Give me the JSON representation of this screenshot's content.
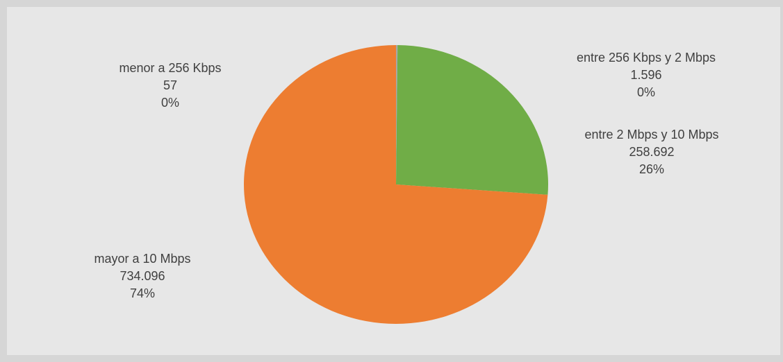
{
  "chart_data": {
    "type": "pie",
    "title": "",
    "slices": [
      {
        "label": "menor a 256 Kbps",
        "value": 57,
        "value_text": "57",
        "percent_text": "0%",
        "color": "#4472c4"
      },
      {
        "label": "entre 256 Kbps y 2 Mbps",
        "value": 1596,
        "value_text": "1.596",
        "percent_text": "0%",
        "color": "#a5a5a5"
      },
      {
        "label": "entre 2 Mbps y 10 Mbps",
        "value": 258692,
        "value_text": "258.692",
        "percent_text": "26%",
        "color": "#70ad47"
      },
      {
        "label": "mayor a  10 Mbps",
        "value": 734096,
        "value_text": "734.096",
        "percent_text": "74%",
        "color": "#ed7d31"
      }
    ]
  }
}
